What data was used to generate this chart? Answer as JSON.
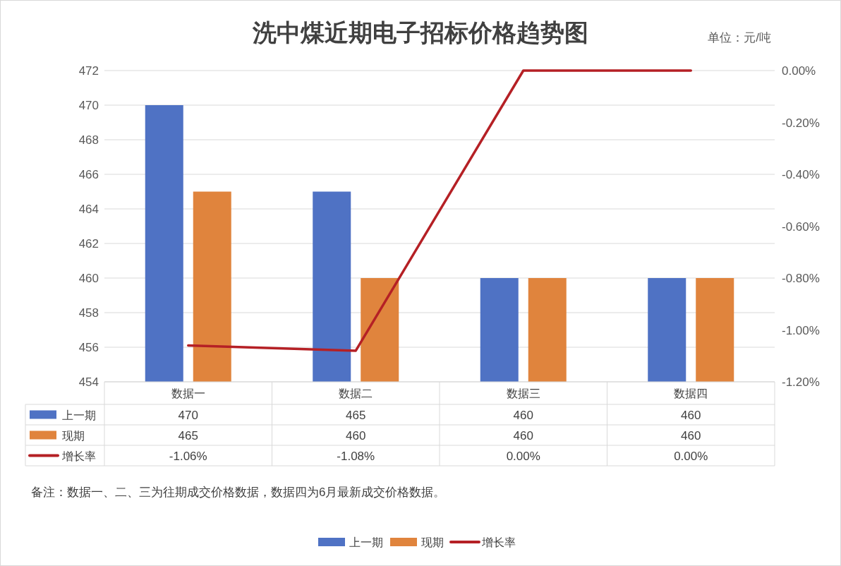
{
  "chart_data": {
    "type": "bar",
    "title": "洗中煤近期电子招标价格趋势图",
    "annotations": [
      "单位：元/吨",
      "备注：数据一、二、三为往期成交价格数据，数据四为6月最新成交价格数据。"
    ],
    "categories": [
      "数据一",
      "数据二",
      "数据三",
      "数据四"
    ],
    "series": [
      {
        "name": "上一期",
        "color": "#4f72c4",
        "values": [
          470,
          465,
          460,
          460
        ],
        "value_labels": [
          "470",
          "465",
          "460",
          "460"
        ]
      },
      {
        "name": "现期",
        "color": "#e0843d",
        "values": [
          465,
          460,
          460,
          460
        ],
        "value_labels": [
          "465",
          "460",
          "460",
          "460"
        ]
      },
      {
        "name": "增长率",
        "type": "line",
        "axis": "y2",
        "color": "#b52025",
        "values": [
          -1.06,
          -1.08,
          0,
          0
        ],
        "value_labels": [
          "-1.06%",
          "-1.08%",
          "0.00%",
          "0.00%"
        ]
      }
    ],
    "ylim": [
      454,
      472
    ],
    "yticks": [
      454,
      456,
      458,
      460,
      462,
      464,
      466,
      468,
      470,
      472
    ],
    "y2lim": [
      -1.2,
      0
    ],
    "y2ticks": [
      {
        "value": -1.2,
        "label": "-1.20%"
      },
      {
        "value": -1.0,
        "label": "-1.00%"
      },
      {
        "value": -0.8,
        "label": "-0.80%"
      },
      {
        "value": -0.6,
        "label": "-0.60%"
      },
      {
        "value": -0.4,
        "label": "-0.40%"
      },
      {
        "value": -0.2,
        "label": "-0.20%"
      },
      {
        "value": 0,
        "label": "0.00%"
      }
    ],
    "grid": "y",
    "legend": "bottom"
  }
}
